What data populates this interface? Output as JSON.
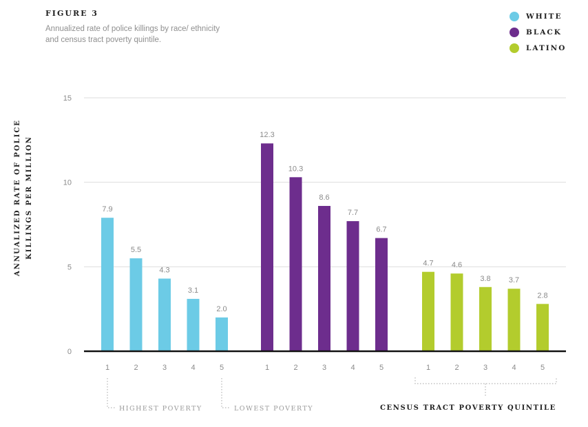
{
  "figure": {
    "label": "FIGURE 3",
    "title": "Annualized rate of police killings by race/ ethnicity and census tract poverty quintile."
  },
  "notes": {
    "highest_poverty": "HIGHEST POVERTY",
    "lowest_poverty": "LOWEST POVERTY"
  },
  "chart_data": {
    "type": "bar",
    "title": "Annualized rate of police killings by race/ ethnicity and census tract poverty quintile.",
    "ylabel": "ANNUALIZED RATE OF POLICE KILLINGS PER MILLION",
    "xlabel": "CENSUS TRACT POVERTY QUINTILE",
    "ylim": [
      0,
      15
    ],
    "yticks": [
      0,
      5,
      10,
      15
    ],
    "grid": true,
    "legend_position": "top-right",
    "categories": [
      "1",
      "2",
      "3",
      "4",
      "5"
    ],
    "series": [
      {
        "name": "WHITE",
        "color": "#6ccbe6",
        "values": [
          7.9,
          5.5,
          4.3,
          3.1,
          2.0
        ]
      },
      {
        "name": "BLACK",
        "color": "#6d2d8d",
        "values": [
          12.3,
          10.3,
          8.6,
          7.7,
          6.7
        ]
      },
      {
        "name": "LATINO",
        "color": "#b3cc2d",
        "values": [
          4.7,
          4.6,
          3.8,
          3.7,
          2.8
        ]
      }
    ]
  }
}
